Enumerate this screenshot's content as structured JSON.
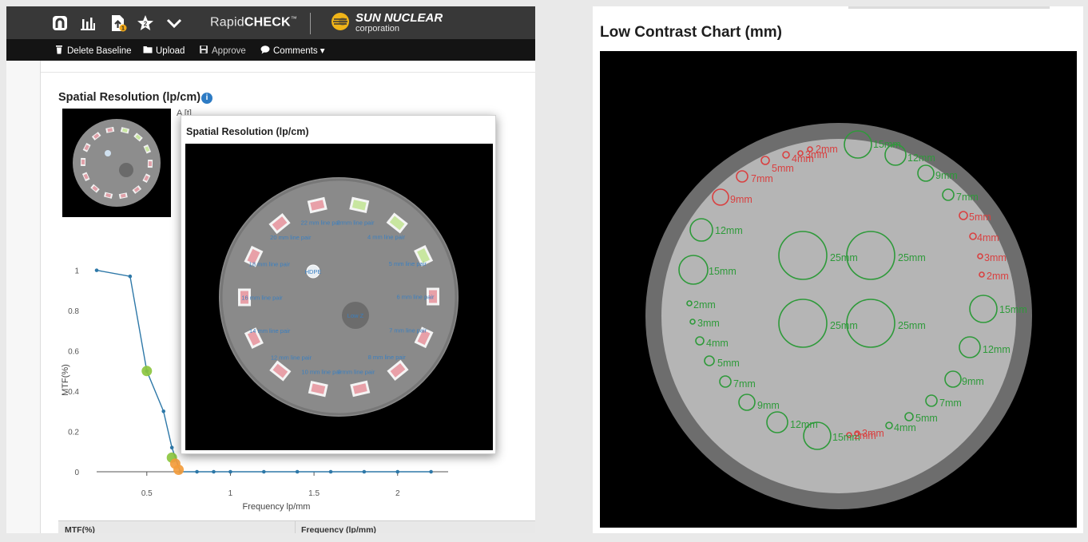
{
  "app": {
    "brand_prefix": "Rapid",
    "brand_bold": "CHECK",
    "brand_tm": "™",
    "vendor_name": "SUN NUCLEAR",
    "vendor_sub": "corporation",
    "notification_count": "2",
    "upload_badge": "1"
  },
  "toolbar": {
    "delete_baseline": "Delete Baseline",
    "upload": "Upload",
    "approve": "Approve",
    "comments": "Comments ▾"
  },
  "spatial": {
    "title": "Spatial Resolution (lp/cm)",
    "info": "i",
    "partial_label": "A       [t]"
  },
  "popup": {
    "title": "Spatial Resolution (lp/cm)",
    "phantom_labels": [
      "2 mm line pair",
      "4 mm line pair",
      "5 mm line pair",
      "6 mm line pair",
      "7 mm line pair",
      "8 mm line pair",
      "9 mm line pair",
      "10 mm line pair",
      "12 mm line pair",
      "14 mm line pair",
      "16 mm line pair",
      "18 mm line pair",
      "20 mm line pair",
      "22 mm line pair",
      "HDPE",
      "Low Z"
    ]
  },
  "chart_data": {
    "type": "line",
    "title": "",
    "xlabel": "Frequency lp/mm",
    "ylabel": "MTF(%)",
    "xlim": [
      0.2,
      2.35
    ],
    "ylim": [
      0,
      1.05
    ],
    "x_ticks": [
      "0.5",
      "1",
      "1.5",
      "2"
    ],
    "y_ticks": [
      "0",
      "0.2",
      "0.4",
      "0.6",
      "0.8",
      "1"
    ],
    "grid": false,
    "series": [
      {
        "color": "#2e78a8",
        "x": [
          0.2,
          0.4,
          0.5,
          0.6,
          0.65,
          0.7,
          0.8,
          0.9,
          1.0,
          1.2,
          1.4,
          1.6,
          1.8,
          2.0,
          2.2
        ],
        "y": [
          1.0,
          0.97,
          0.5,
          0.3,
          0.12,
          0.0,
          0.0,
          0.0,
          0.0,
          0.0,
          0.0,
          0.0,
          0.0,
          0.0,
          0.0
        ]
      }
    ],
    "markers": [
      {
        "x": 0.5,
        "y": 0.5,
        "color": "#8cc63f"
      },
      {
        "x": 0.65,
        "y": 0.07,
        "color": "#8cc63f"
      },
      {
        "x": 0.67,
        "y": 0.04,
        "color": "#f39c3c"
      },
      {
        "x": 0.69,
        "y": 0.01,
        "color": "#f39c3c"
      }
    ]
  },
  "table": {
    "col1": "MTF(%)",
    "col2": "Frequency (lp/mm)"
  },
  "low_contrast": {
    "title": "Low Contrast Chart (mm)",
    "labels": [
      {
        "text": "2mm",
        "color": "#d94040"
      },
      {
        "text": "3mm",
        "color": "#d94040"
      },
      {
        "text": "4mm",
        "color": "#d94040"
      },
      {
        "text": "5mm",
        "color": "#d94040"
      },
      {
        "text": "7mm",
        "color": "#d94040"
      },
      {
        "text": "9mm",
        "color": "#d94040"
      },
      {
        "text": "15mm",
        "color": "#2e9a3a"
      },
      {
        "text": "12mm",
        "color": "#2e9a3a"
      },
      {
        "text": "9mm",
        "color": "#2e9a3a"
      },
      {
        "text": "7mm",
        "color": "#2e9a3a"
      },
      {
        "text": "5mm",
        "color": "#d94040"
      },
      {
        "text": "4mm",
        "color": "#d94040"
      },
      {
        "text": "3mm",
        "color": "#d94040"
      },
      {
        "text": "2mm",
        "color": "#d94040"
      },
      {
        "text": "12mm",
        "color": "#2e9a3a"
      },
      {
        "text": "15mm",
        "color": "#2e9a3a"
      },
      {
        "text": "25mm",
        "color": "#2e9a3a"
      },
      {
        "text": "25mm",
        "color": "#2e9a3a"
      },
      {
        "text": "25mm",
        "color": "#2e9a3a"
      },
      {
        "text": "25mm",
        "color": "#2e9a3a"
      },
      {
        "text": "2mm",
        "color": "#2e9a3a"
      },
      {
        "text": "3mm",
        "color": "#2e9a3a"
      },
      {
        "text": "4mm",
        "color": "#2e9a3a"
      },
      {
        "text": "5mm",
        "color": "#2e9a3a"
      },
      {
        "text": "7mm",
        "color": "#2e9a3a"
      },
      {
        "text": "9mm",
        "color": "#2e9a3a"
      },
      {
        "text": "12mm",
        "color": "#2e9a3a"
      },
      {
        "text": "15mm",
        "color": "#2e9a3a"
      },
      {
        "text": "15mm",
        "color": "#2e9a3a"
      },
      {
        "text": "12mm",
        "color": "#2e9a3a"
      },
      {
        "text": "9mm",
        "color": "#2e9a3a"
      },
      {
        "text": "7mm",
        "color": "#2e9a3a"
      },
      {
        "text": "5mm",
        "color": "#2e9a3a"
      },
      {
        "text": "4mm",
        "color": "#2e9a3a"
      },
      {
        "text": "3mm",
        "color": "#d94040"
      },
      {
        "text": "2mm",
        "color": "#d94040"
      }
    ]
  }
}
